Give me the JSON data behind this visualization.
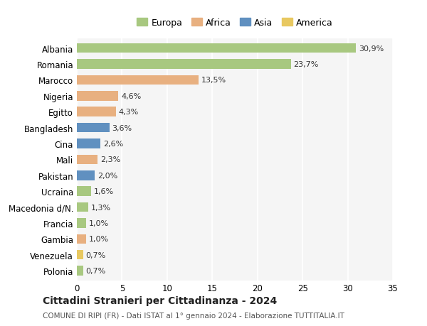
{
  "categories": [
    "Albania",
    "Romania",
    "Marocco",
    "Nigeria",
    "Egitto",
    "Bangladesh",
    "Cina",
    "Mali",
    "Pakistan",
    "Ucraina",
    "Macedonia d/N.",
    "Francia",
    "Gambia",
    "Venezuela",
    "Polonia"
  ],
  "values": [
    30.9,
    23.7,
    13.5,
    4.6,
    4.3,
    3.6,
    2.6,
    2.3,
    2.0,
    1.6,
    1.3,
    1.0,
    1.0,
    0.7,
    0.7
  ],
  "labels": [
    "30,9%",
    "23,7%",
    "13,5%",
    "4,6%",
    "4,3%",
    "3,6%",
    "2,6%",
    "2,3%",
    "2,0%",
    "1,6%",
    "1,3%",
    "1,0%",
    "1,0%",
    "0,7%",
    "0,7%"
  ],
  "colors": [
    "#a8c880",
    "#a8c880",
    "#e8b080",
    "#e8b080",
    "#e8b080",
    "#6090c0",
    "#6090c0",
    "#e8b080",
    "#6090c0",
    "#a8c880",
    "#a8c880",
    "#a8c880",
    "#e8b080",
    "#e8c860",
    "#a8c880"
  ],
  "continent": [
    "Europa",
    "Europa",
    "Africa",
    "Africa",
    "Africa",
    "Asia",
    "Asia",
    "Africa",
    "Asia",
    "Europa",
    "Europa",
    "Europa",
    "Africa",
    "America",
    "Europa"
  ],
  "legend_labels": [
    "Europa",
    "Africa",
    "Asia",
    "America"
  ],
  "legend_colors": [
    "#a8c880",
    "#e8b080",
    "#6090c0",
    "#e8c860"
  ],
  "title": "Cittadini Stranieri per Cittadinanza - 2024",
  "subtitle": "COMUNE DI RIPI (FR) - Dati ISTAT al 1° gennaio 2024 - Elaborazione TUTTITALIA.IT",
  "xlim": [
    0,
    35
  ],
  "xticks": [
    0,
    5,
    10,
    15,
    20,
    25,
    30,
    35
  ],
  "bg_color": "#ffffff",
  "plot_bg_color": "#f5f5f5",
  "grid_color": "#ffffff",
  "bar_height": 0.6
}
